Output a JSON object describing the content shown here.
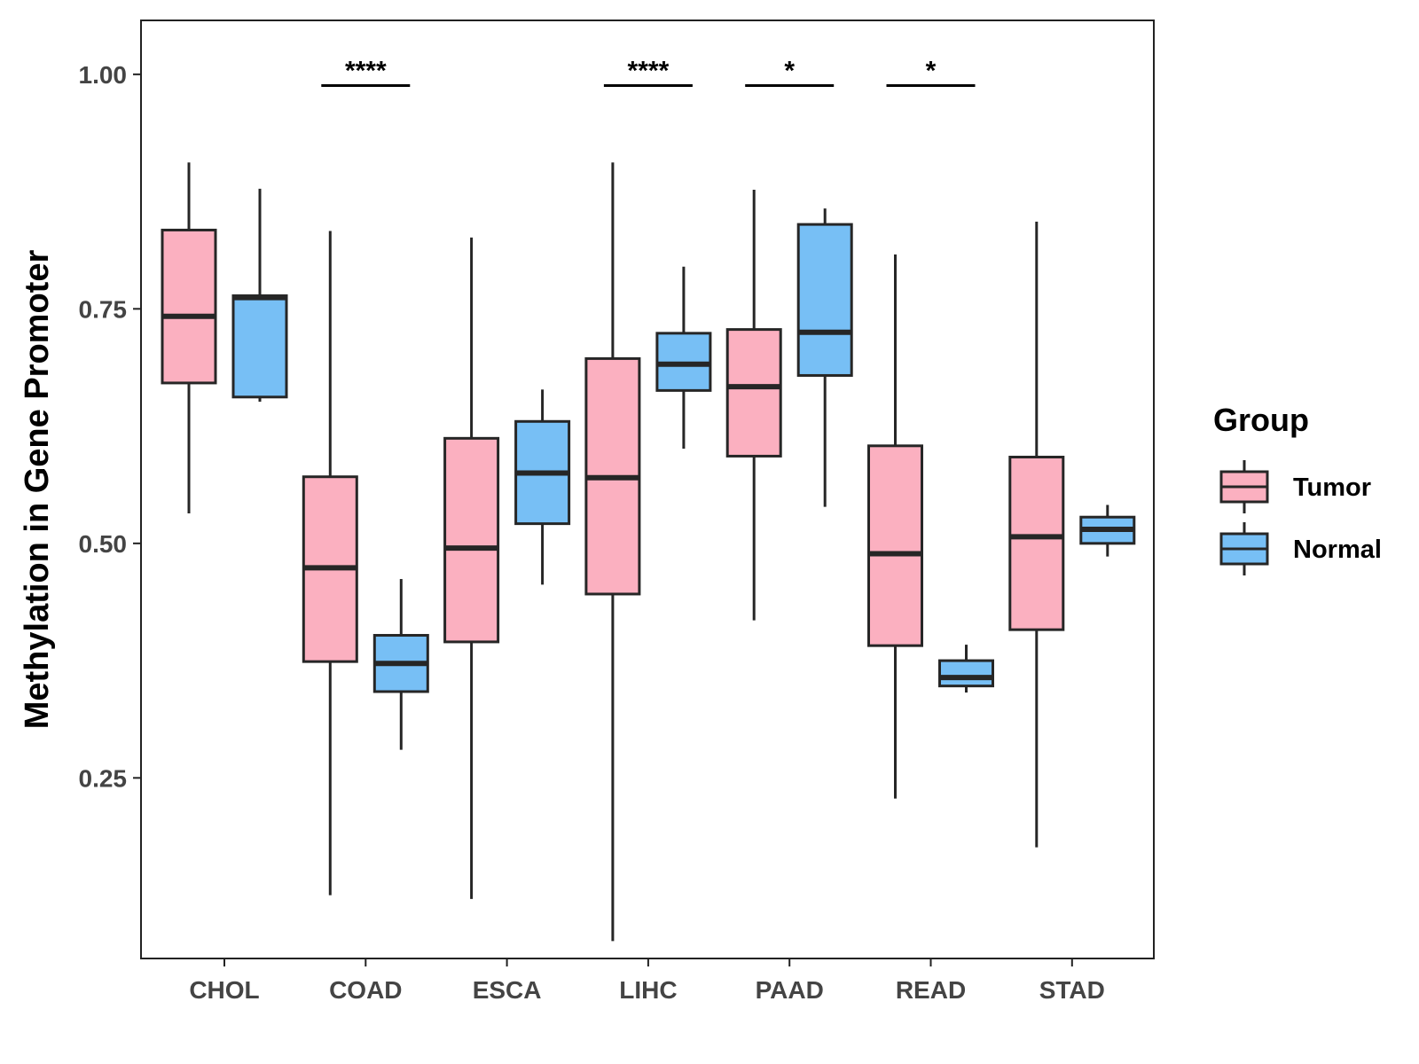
{
  "chart_data": {
    "type": "boxplot",
    "title": "",
    "xlabel": "",
    "ylabel": "Methylation in Gene Promoter",
    "ylim": [
      0.0575,
      1.0575
    ],
    "yticks": [
      0.25,
      0.5,
      0.75,
      1.0
    ],
    "ytick_labels": [
      "0.25",
      "0.50",
      "0.75",
      "1.00"
    ],
    "grid": false,
    "categories": [
      "CHOL",
      "COAD",
      "ESCA",
      "LIHC",
      "PAAD",
      "READ",
      "STAD"
    ],
    "series": [
      {
        "name": "Tumor",
        "color": "#fbb0c0",
        "boxes": [
          {
            "whisker_low": 0.532,
            "q1": 0.671,
            "median": 0.742,
            "q3": 0.834,
            "whisker_high": 0.906
          },
          {
            "whisker_low": 0.125,
            "q1": 0.374,
            "median": 0.474,
            "q3": 0.571,
            "whisker_high": 0.833
          },
          {
            "whisker_low": 0.121,
            "q1": 0.395,
            "median": 0.495,
            "q3": 0.612,
            "whisker_high": 0.826
          },
          {
            "whisker_low": 0.076,
            "q1": 0.446,
            "median": 0.57,
            "q3": 0.697,
            "whisker_high": 0.906
          },
          {
            "whisker_low": 0.418,
            "q1": 0.593,
            "median": 0.667,
            "q3": 0.728,
            "whisker_high": 0.877
          },
          {
            "whisker_low": 0.228,
            "q1": 0.391,
            "median": 0.489,
            "q3": 0.604,
            "whisker_high": 0.808
          },
          {
            "whisker_low": 0.176,
            "q1": 0.408,
            "median": 0.507,
            "q3": 0.592,
            "whisker_high": 0.843
          }
        ]
      },
      {
        "name": "Normal",
        "color": "#77bff5",
        "boxes": [
          {
            "whisker_low": 0.651,
            "q1": 0.656,
            "median": 0.762,
            "q3": 0.764,
            "whisker_high": 0.878
          },
          {
            "whisker_low": 0.28,
            "q1": 0.342,
            "median": 0.372,
            "q3": 0.402,
            "whisker_high": 0.462
          },
          {
            "whisker_low": 0.456,
            "q1": 0.521,
            "median": 0.575,
            "q3": 0.63,
            "whisker_high": 0.664
          },
          {
            "whisker_low": 0.601,
            "q1": 0.663,
            "median": 0.691,
            "q3": 0.724,
            "whisker_high": 0.795
          },
          {
            "whisker_low": 0.539,
            "q1": 0.679,
            "median": 0.725,
            "q3": 0.84,
            "whisker_high": 0.857
          },
          {
            "whisker_low": 0.341,
            "q1": 0.348,
            "median": 0.357,
            "q3": 0.375,
            "whisker_high": 0.392
          },
          {
            "whisker_low": 0.486,
            "q1": 0.5,
            "median": 0.515,
            "q3": 0.528,
            "whisker_high": 0.541
          }
        ]
      }
    ],
    "significance": [
      {
        "category": "COAD",
        "label": "****",
        "y": 0.988
      },
      {
        "category": "LIHC",
        "label": "****",
        "y": 0.988
      },
      {
        "category": "PAAD",
        "label": "*",
        "y": 0.988
      },
      {
        "category": "READ",
        "label": "*",
        "y": 0.988
      }
    ],
    "legend": {
      "title": "Group",
      "position": "right",
      "entries": [
        "Tumor",
        "Normal"
      ]
    }
  }
}
